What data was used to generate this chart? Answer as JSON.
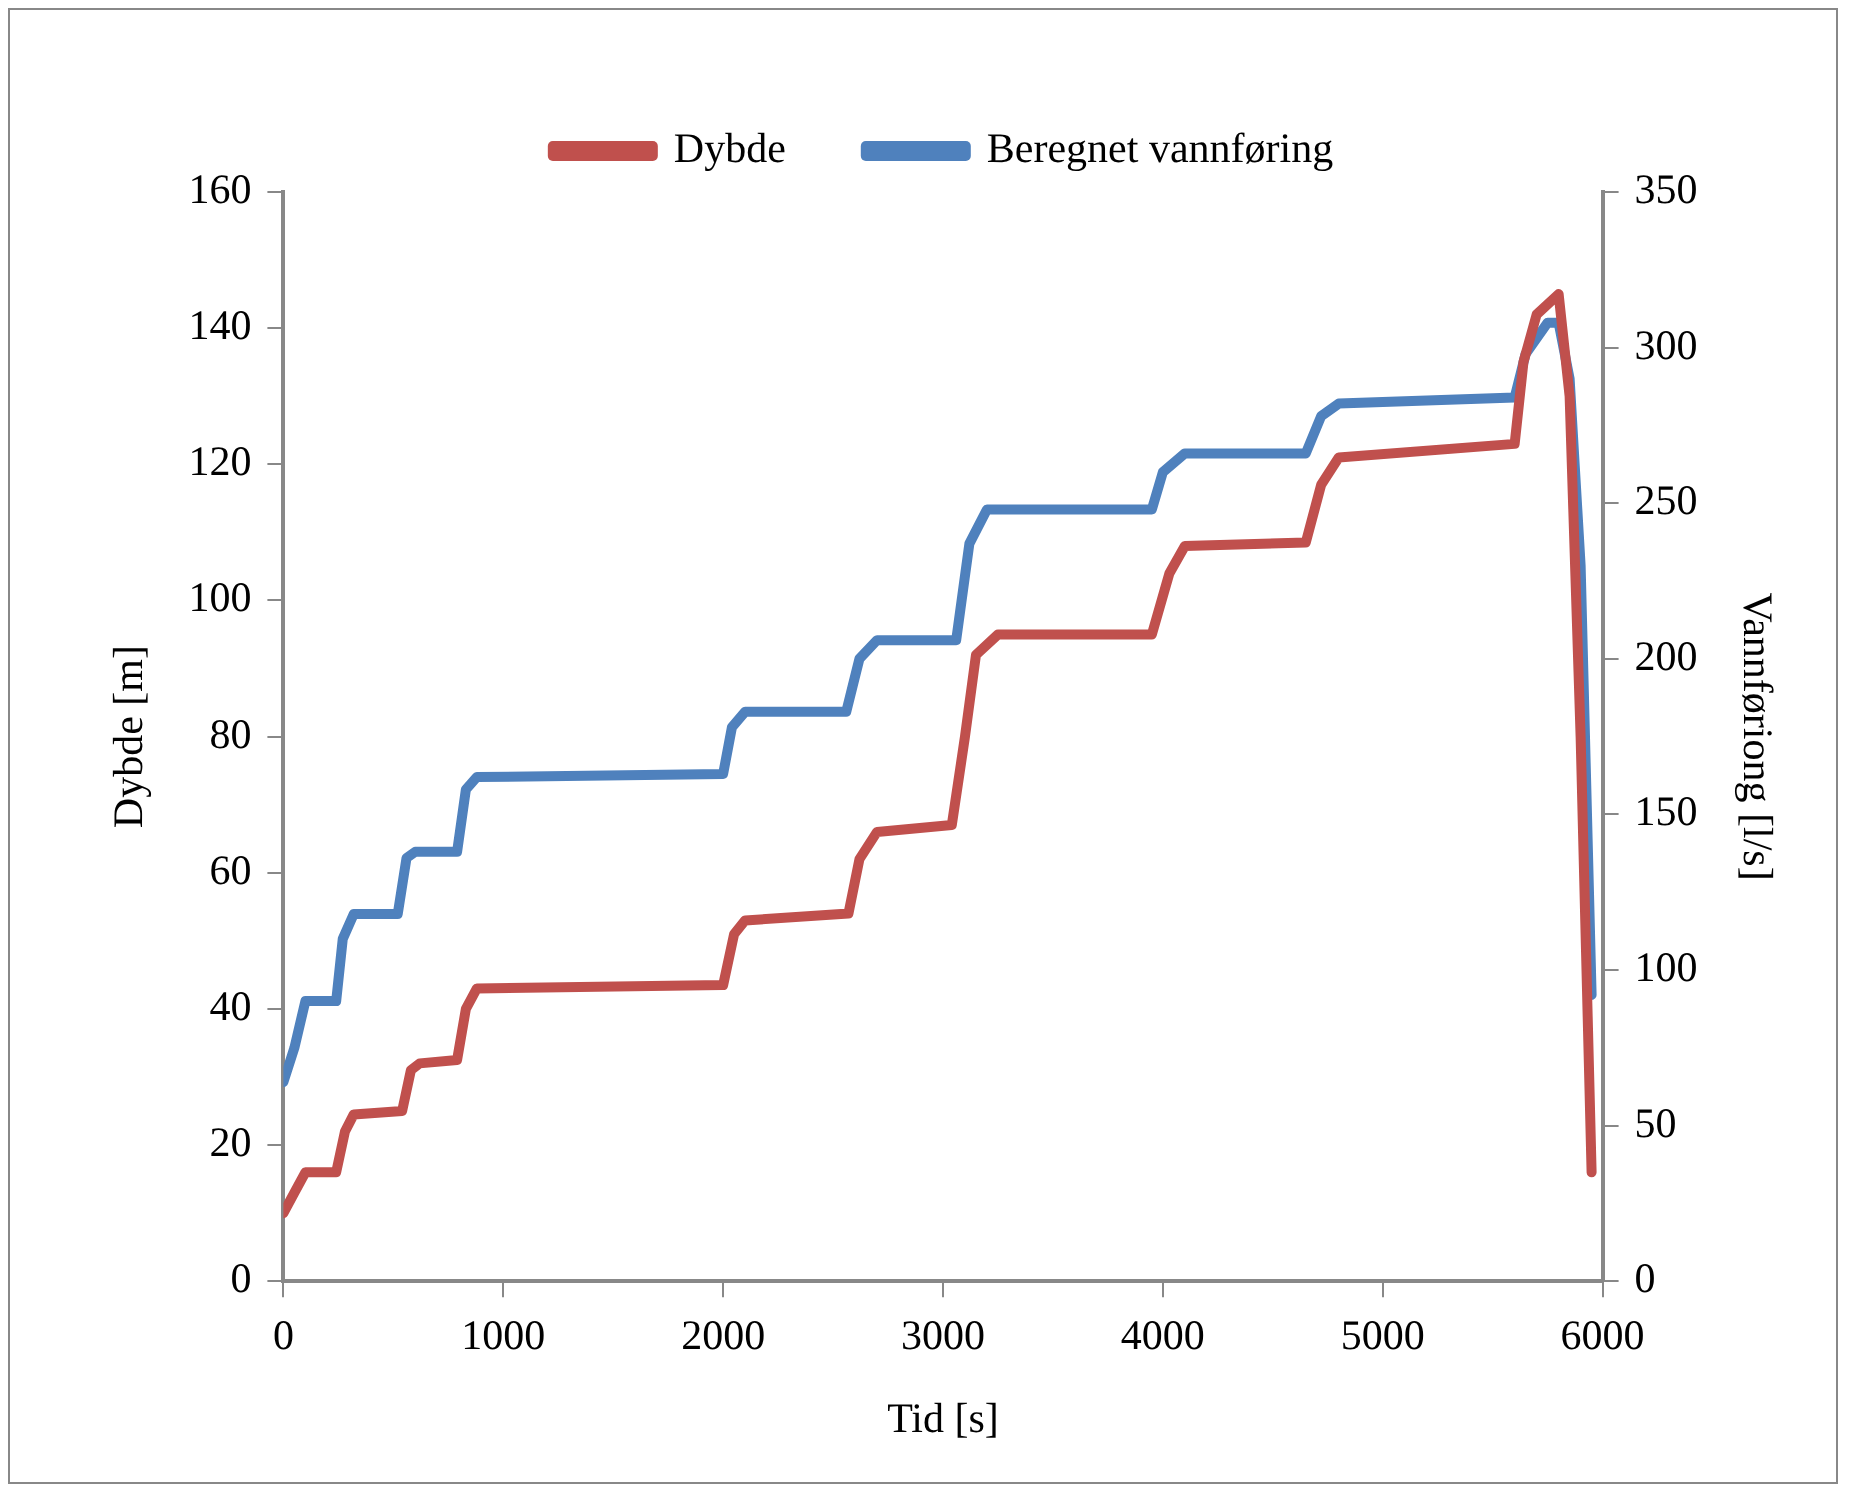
{
  "chart_data": {
    "type": "line",
    "xlabel": "Tid [s]",
    "ylabel": "Dybde [m]",
    "y2label": "Vannføriong [l/s]",
    "xlim": [
      0,
      6000
    ],
    "xticks": [
      0,
      1000,
      2000,
      3000,
      4000,
      5000,
      6000
    ],
    "ylim": [
      0,
      160
    ],
    "yticks": [
      0,
      20,
      40,
      60,
      80,
      100,
      120,
      140,
      160
    ],
    "y2lim": [
      0,
      350
    ],
    "y2ticks": [
      0,
      50,
      100,
      150,
      200,
      250,
      300,
      350
    ],
    "grid": false,
    "legend": "top",
    "marker": "none",
    "line_style": "solid",
    "series": [
      {
        "name": "Dybde",
        "color": "#c0504d",
        "x": [
          0,
          50,
          100,
          240,
          280,
          320,
          540,
          580,
          620,
          790,
          830,
          880,
          2000,
          2050,
          2100,
          2570,
          2620,
          2700,
          3040,
          3100,
          3150,
          3250,
          3950,
          4030,
          4100,
          4650,
          4720,
          4800,
          5600,
          5640,
          5700,
          5800,
          5850,
          5900,
          5950
        ],
        "values": [
          10,
          13,
          16,
          16,
          22,
          24.5,
          25,
          31,
          32,
          32.5,
          40,
          43,
          43.5,
          51,
          53,
          54,
          62,
          66,
          67,
          80,
          92,
          95,
          95,
          104,
          108,
          108.5,
          117,
          121,
          123,
          135,
          142,
          145,
          130,
          80,
          16
        ]
      },
      {
        "name": "Beregnet vannføring",
        "color": "#4f81bd",
        "axis": "y2",
        "x": [
          0,
          50,
          100,
          240,
          270,
          320,
          520,
          560,
          600,
          790,
          830,
          880,
          2000,
          2040,
          2100,
          2560,
          2620,
          2700,
          3060,
          3120,
          3200,
          3950,
          4000,
          4100,
          4650,
          4720,
          4800,
          5600,
          5650,
          5750,
          5800,
          5850,
          5900,
          5950
        ],
        "values": [
          64,
          75,
          90,
          90,
          110,
          118,
          118,
          136,
          138,
          138,
          158,
          162,
          163,
          178,
          183,
          183,
          200,
          206,
          206,
          237,
          248,
          248,
          260,
          266,
          266,
          278,
          282,
          284,
          298,
          308,
          308,
          290,
          230,
          92
        ]
      }
    ]
  }
}
